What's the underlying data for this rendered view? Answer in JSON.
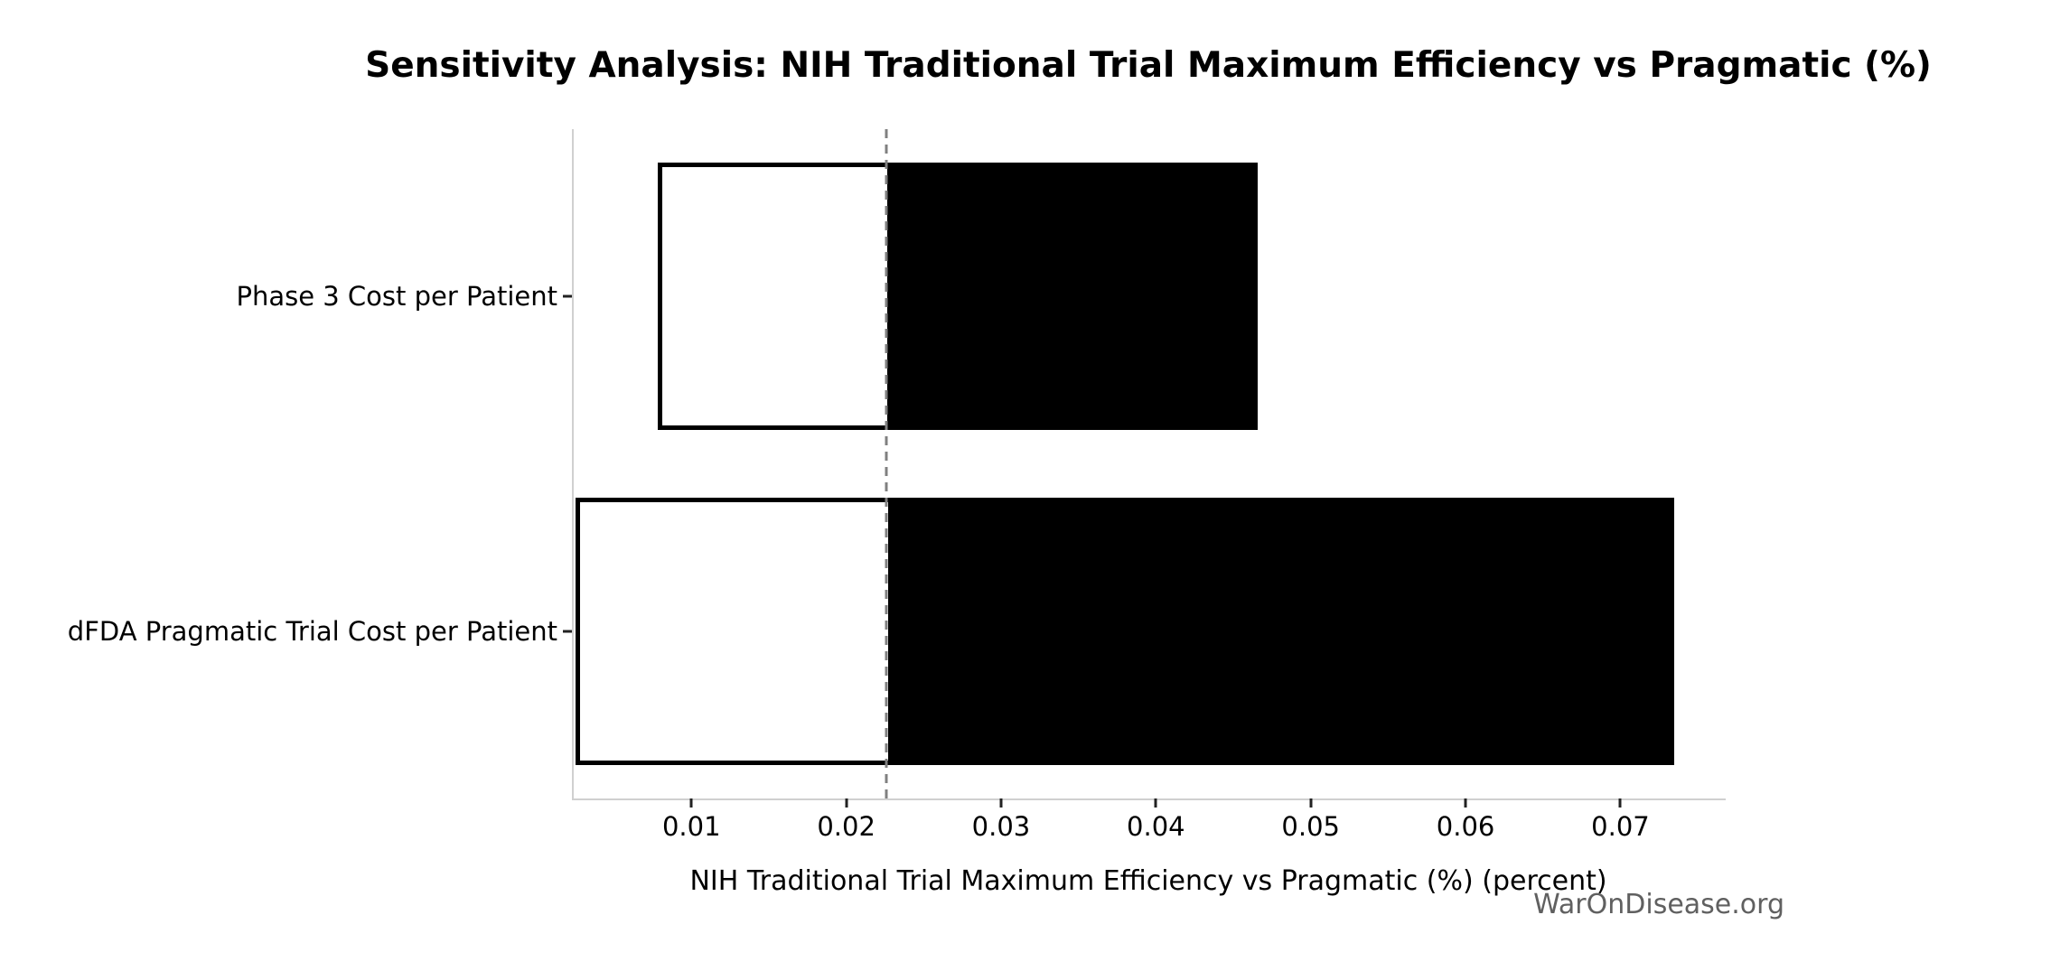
{
  "page": {
    "background_color": "#ffffff"
  },
  "chart_data": {
    "type": "bar",
    "orientation": "horizontal",
    "subtype": "tornado-sensitivity",
    "title": "Sensitivity Analysis: NIH Traditional Trial Maximum Efficiency vs Pragmatic (%)",
    "xlabel": "NIH Traditional Trial Maximum Efficiency vs Pragmatic (%) (percent)",
    "ylabel": "",
    "categories": [
      "Phase 3 Cost per Patient",
      "dFDA Pragmatic Trial Cost per Patient"
    ],
    "series": [
      {
        "name": "low",
        "values": [
          0.0078,
          0.0025
        ]
      },
      {
        "name": "high",
        "values": [
          0.0466,
          0.0735
        ]
      }
    ],
    "baseline": 0.0226,
    "xticks": [
      0.01,
      0.02,
      0.03,
      0.04,
      0.05,
      0.06,
      0.07
    ],
    "xtick_labels": [
      "0.01",
      "0.02",
      "0.03",
      "0.04",
      "0.05",
      "0.06",
      "0.07"
    ],
    "xlim": [
      0.0024,
      0.0768
    ],
    "grid": false,
    "legend": false,
    "bar_thickness_frac": 0.8,
    "colors": {
      "bar_fill_high": "#000000",
      "bar_fill_low": "#ffffff",
      "bar_edge": "#000000",
      "baseline_line": "#808080",
      "spine": "#d0d0d0",
      "tick": "#222222",
      "text": "#000000",
      "watermark_text": "#606060"
    },
    "watermark": "WarOnDisease.org"
  }
}
